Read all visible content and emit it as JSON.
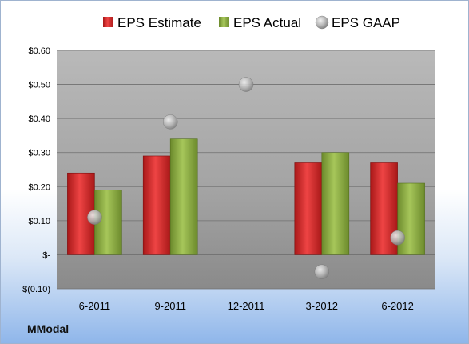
{
  "brand": "MModal",
  "colors": {
    "estimate": "#d42a2a",
    "actual": "#8fb042",
    "gaap": "#b0b0b0"
  },
  "chart_data": {
    "type": "bar",
    "title": "",
    "xlabel": "",
    "ylabel": "",
    "categories": [
      "6-2011",
      "9-2011",
      "12-2011",
      "3-2012",
      "6-2012"
    ],
    "series": [
      {
        "name": "EPS Estimate",
        "kind": "bar",
        "values": [
          0.24,
          0.29,
          null,
          0.27,
          0.27
        ]
      },
      {
        "name": "EPS Actual",
        "kind": "bar",
        "values": [
          0.19,
          0.34,
          null,
          0.3,
          0.21
        ]
      },
      {
        "name": "EPS GAAP",
        "kind": "marker",
        "values": [
          0.11,
          0.39,
          0.5,
          -0.05,
          0.05
        ]
      }
    ],
    "ylim": [
      -0.1,
      0.6
    ],
    "yticks": [
      0.6,
      0.5,
      0.4,
      0.3,
      0.2,
      0.1,
      0,
      -0.1
    ],
    "ytick_labels": [
      "$0.60",
      "$0.50",
      "$0.40",
      "$0.30",
      "$0.20",
      "$0.10",
      "$-",
      "$(0.10)"
    ],
    "legend": "top",
    "grid": true
  }
}
